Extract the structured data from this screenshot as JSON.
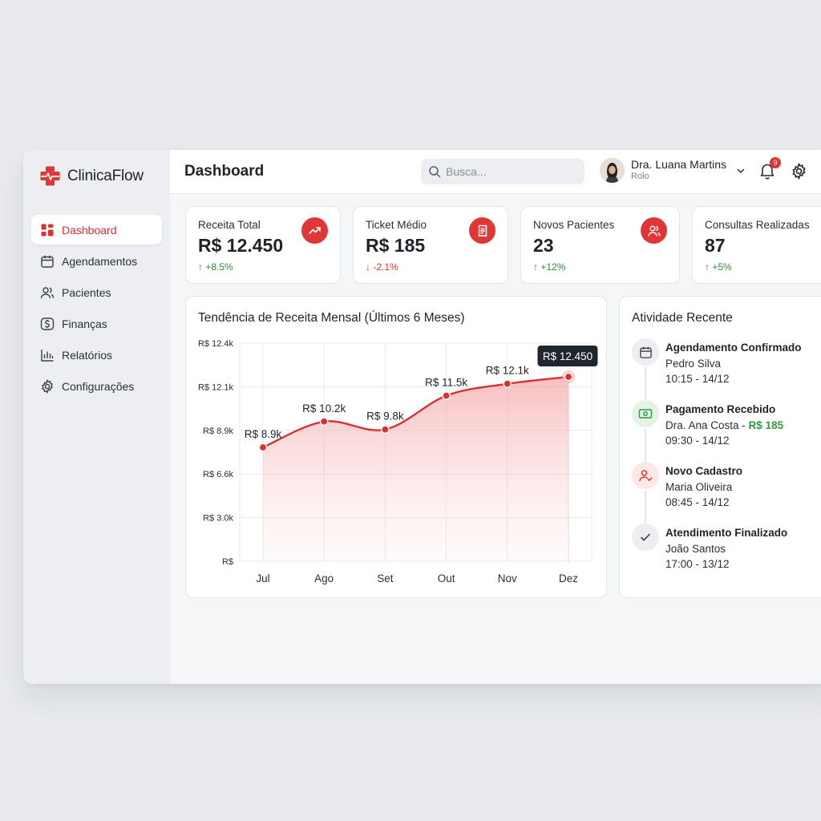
{
  "brand": {
    "name": "ClinicaFlow",
    "color": "#e13636"
  },
  "sidebar": {
    "items": [
      {
        "label": "Dashboard",
        "icon": "grid-icon",
        "active": true
      },
      {
        "label": "Agendamentos",
        "icon": "calendar-icon"
      },
      {
        "label": "Pacientes",
        "icon": "users-icon"
      },
      {
        "label": "Finanças",
        "icon": "dollar-icon"
      },
      {
        "label": "Relatórios",
        "icon": "bar-chart-icon"
      },
      {
        "label": "Configurações",
        "icon": "gear-icon"
      }
    ]
  },
  "header": {
    "title": "Dashboard",
    "search_placeholder": "Busca...",
    "user": {
      "name": "Dra. Luana Martins",
      "role": "Rolo"
    },
    "notifications_count": "9"
  },
  "kpis": [
    {
      "label": "Receita Total",
      "value": "R$ 12.450",
      "delta": "+8.5%",
      "direction": "up",
      "icon": "trending-up-icon"
    },
    {
      "label": "Ticket Médio",
      "value": "R$ 185",
      "delta": "-2.1%",
      "direction": "down",
      "icon": "receipt-icon"
    },
    {
      "label": "Novos Pacientes",
      "value": "23",
      "delta": "+12%",
      "direction": "up",
      "icon": "users-icon"
    },
    {
      "label": "Consultas Realizadas",
      "value": "87",
      "delta": "+5%",
      "direction": "up",
      "icon": ""
    }
  ],
  "chart_data": {
    "type": "area",
    "title": "Tendência de Receita Mensal (Últimos 6 Meses)",
    "categories": [
      "Jul",
      "Ago",
      "Set",
      "Out",
      "Nov",
      "Dez"
    ],
    "values": [
      8.9,
      10.2,
      9.8,
      11.5,
      12.1,
      12.45
    ],
    "data_labels": [
      "R$ 8.9k",
      "R$ 10.2k",
      "R$ 9.8k",
      "R$ 11.5k",
      "R$ 12.1k",
      ""
    ],
    "y_ticks": [
      {
        "value": 12.4,
        "label": "R$ 12.4k"
      },
      {
        "value": 12.1,
        "label": "R$ 12.1k"
      },
      {
        "value": 8.9,
        "label": "R$ 8.9k"
      },
      {
        "value": 6.6,
        "label": "R$ 6.6k"
      },
      {
        "value": 3.0,
        "label": "R$ 3.0k"
      },
      {
        "value": 0,
        "label": "R$"
      }
    ],
    "tooltip": {
      "category": "Dez",
      "label": "R$ 12.450"
    },
    "grid": true,
    "line_color": "#d93030"
  },
  "activity": {
    "title": "Atividade Recente",
    "items": [
      {
        "title": "Agendamento Confirmado",
        "subtitle": "Pedro Silva",
        "amount": "",
        "time": "10:15 - 14/12",
        "icon": "calendar-icon",
        "tone": "gray"
      },
      {
        "title": "Pagamento Recebido",
        "subtitle": "Dra. Ana Costa - ",
        "amount": "R$ 185",
        "time": "09:30 - 14/12",
        "icon": "cash-icon",
        "tone": "green"
      },
      {
        "title": "Novo Cadastro",
        "subtitle": "Maria Oliveira",
        "amount": "",
        "time": "08:45 - 14/12",
        "icon": "user-plus-icon",
        "tone": "red"
      },
      {
        "title": "Atendimento Finalizado",
        "subtitle": "João Santos",
        "amount": "",
        "time": "17:00 - 13/12",
        "icon": "check-icon",
        "tone": "gray"
      }
    ]
  }
}
